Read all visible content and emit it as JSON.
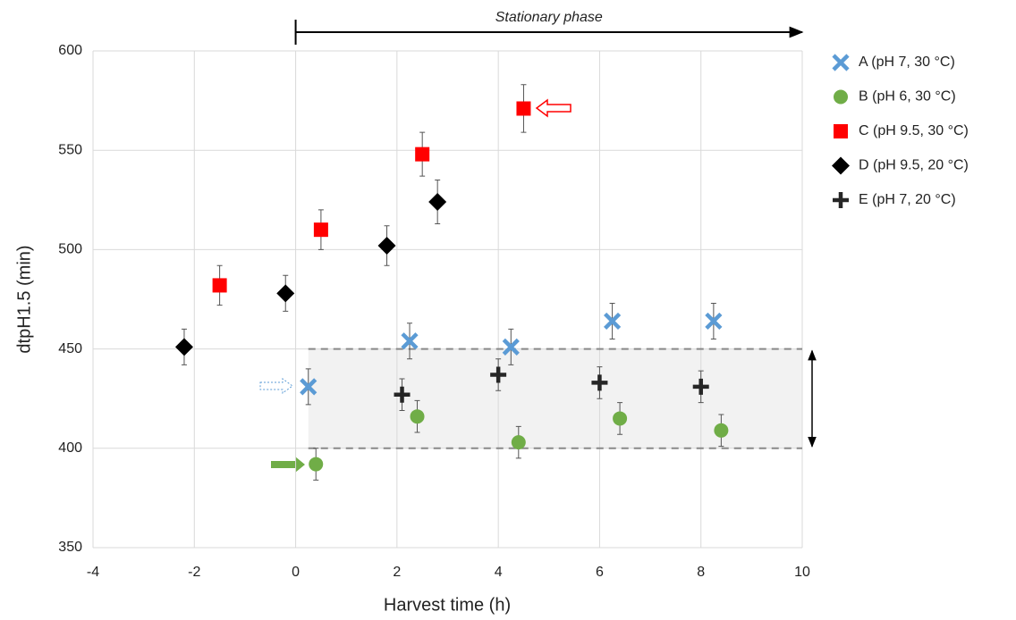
{
  "chart_data": {
    "type": "scatter",
    "xlabel": "Harvest time (h)",
    "ylabel": "dtpH1.5 (min)",
    "xlim": [
      -4,
      10
    ],
    "xticks": [
      -4,
      -2,
      0,
      2,
      4,
      6,
      8,
      10
    ],
    "ylim": [
      350,
      600
    ],
    "yticks": [
      350,
      400,
      450,
      500,
      550,
      600
    ],
    "grid": true,
    "legend": "right",
    "annotation": {
      "text": "Stationary phase",
      "x": [
        0,
        10
      ]
    },
    "highlight_band": {
      "xlim": [
        0.25,
        10
      ],
      "ylim": [
        400,
        450
      ]
    },
    "series": [
      {
        "name": "A  (pH 7, 30 °C)",
        "color": "#5b9bd5",
        "marker": "x",
        "x": [
          0.25,
          2.25,
          4.25,
          6.25,
          8.25
        ],
        "values": [
          431,
          454,
          451,
          464,
          464
        ],
        "errors": [
          9,
          9,
          9,
          9,
          9
        ]
      },
      {
        "name": "B  (pH 6, 30 °C)",
        "color": "#70ad47",
        "marker": "circle",
        "x": [
          0.4,
          2.4,
          4.4,
          6.4,
          8.4
        ],
        "values": [
          392,
          416,
          403,
          415,
          409
        ],
        "errors": [
          8,
          8,
          8,
          8,
          8
        ]
      },
      {
        "name": "C  (pH 9.5, 30 °C)",
        "color": "#ff0000",
        "marker": "square",
        "x": [
          -1.5,
          0.5,
          2.5,
          4.5
        ],
        "values": [
          482,
          510,
          548,
          571
        ],
        "errors": [
          10,
          10,
          11,
          12
        ]
      },
      {
        "name": "D  (pH 9.5, 20 °C)",
        "color": "#000000",
        "marker": "diamond",
        "x": [
          -2.2,
          -0.2,
          1.8,
          2.8
        ],
        "values": [
          451,
          478,
          502,
          524
        ],
        "errors": [
          9,
          9,
          10,
          11
        ]
      },
      {
        "name": "E  (pH 7, 20 °C)",
        "color": "#262626",
        "marker": "plus",
        "x": [
          2.1,
          4,
          6,
          8
        ],
        "values": [
          427,
          437,
          433,
          431
        ],
        "errors": [
          8,
          8,
          8,
          8
        ]
      }
    ]
  }
}
